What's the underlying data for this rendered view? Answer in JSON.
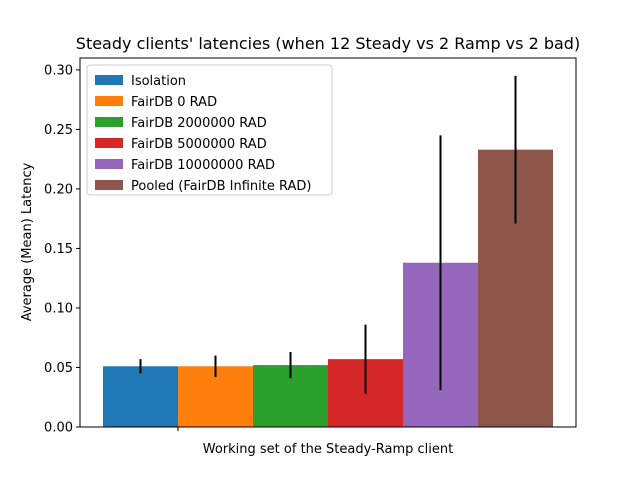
{
  "chart_data": {
    "type": "bar",
    "title": "Steady clients' latencies (when 12 Steady vs 2 Ramp vs 2 bad)",
    "xlabel": "Working set of the Steady-Ramp client",
    "ylabel": "Average (Mean) Latency",
    "categories": [
      ""
    ],
    "ylim": [
      0,
      0.31
    ],
    "yticks": [
      0.0,
      0.05,
      0.1,
      0.15,
      0.2,
      0.25,
      0.3
    ],
    "ytick_labels": [
      "0.00",
      "0.05",
      "0.10",
      "0.15",
      "0.20",
      "0.25",
      "0.30"
    ],
    "legend_position": "upper-left",
    "grid": false,
    "series": [
      {
        "name": "Isolation",
        "values": [
          0.051
        ],
        "error": [
          0.006
        ],
        "color": "#1f77b4"
      },
      {
        "name": "FairDB 0 RAD",
        "values": [
          0.051
        ],
        "error": [
          0.009
        ],
        "color": "#ff7f0e"
      },
      {
        "name": "FairDB 2000000 RAD",
        "values": [
          0.052
        ],
        "error": [
          0.011
        ],
        "color": "#2ca02c"
      },
      {
        "name": "FairDB 5000000 RAD",
        "values": [
          0.057
        ],
        "error": [
          0.029
        ],
        "color": "#d62728"
      },
      {
        "name": "FairDB 10000000 RAD",
        "values": [
          0.138
        ],
        "error": [
          0.107
        ],
        "color": "#9467bd"
      },
      {
        "name": "Pooled (FairDB Infinite RAD)",
        "values": [
          0.233
        ],
        "error": [
          0.062
        ],
        "color": "#8c564b"
      }
    ]
  }
}
